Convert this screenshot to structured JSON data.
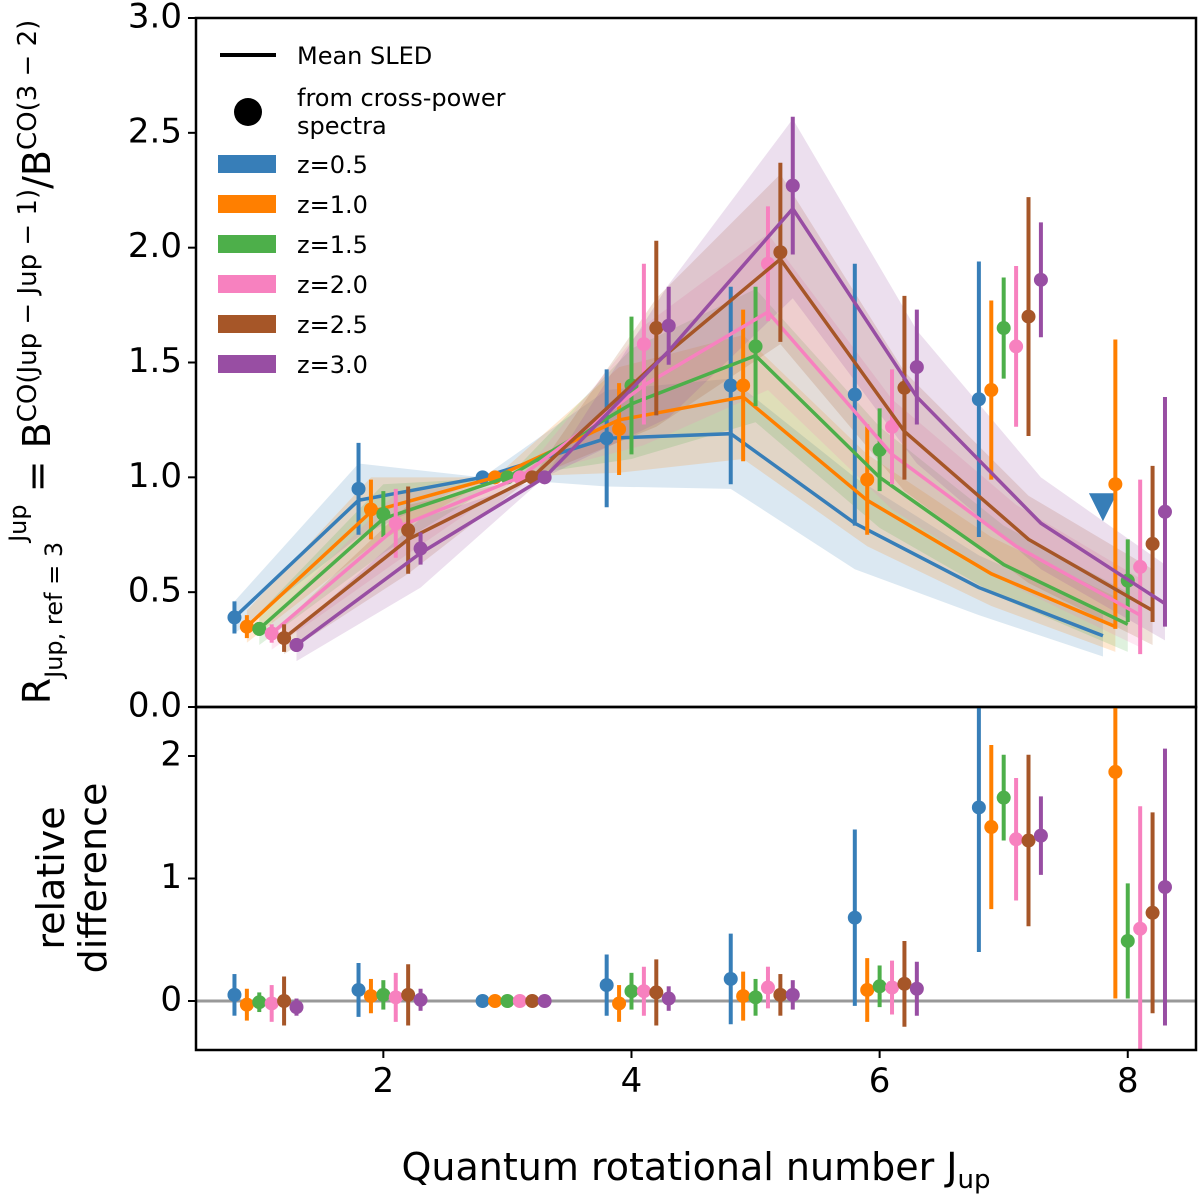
{
  "chart_data": [
    {
      "type": "line",
      "ylabel": [
        "R",
        "Jup, ref = 3",
        "Jup",
        " = B",
        "CO(Jup − Jup − 1)",
        "/B",
        "CO(3 − 2)"
      ],
      "xlim": [
        0.49,
        8.55
      ],
      "ylim": [
        0,
        3
      ],
      "yticks": [
        {
          "value": 0,
          "label": "0.0"
        },
        0.5,
        {
          "value": 1,
          "label": "1.0"
        },
        1.5,
        {
          "value": 2,
          "label": "2.0"
        },
        2.5,
        {
          "value": 3,
          "label": "3.0"
        }
      ],
      "legend": "upper left",
      "legend_items": [
        "Mean SLED",
        "from cross-power",
        " spectra"
      ],
      "series": [
        {
          "name": "z=0.5",
          "color": "#377eb8",
          "x": [
            0.8,
            1.8,
            2.8,
            3.8,
            4.8,
            5.8,
            6.8,
            7.8
          ],
          "values": [
            0.39,
            0.9,
            1.0,
            1.17,
            1.19,
            0.8,
            0.52,
            0.31
          ],
          "band_low": [
            0.32,
            0.74,
            1.0,
            0.96,
            0.95,
            0.6,
            0.4,
            0.22
          ],
          "band_high": [
            0.46,
            1.06,
            1.0,
            1.38,
            1.43,
            1.0,
            0.66,
            0.42
          ],
          "points": [
            0.39,
            0.95,
            1.0,
            1.17,
            1.4,
            1.36,
            1.34,
            null
          ],
          "errors": [
            0.07,
            0.2,
            0,
            0.3,
            0.43,
            0.57,
            0.6,
            null
          ],
          "upper_limits": [
            null,
            null,
            null,
            null,
            null,
            null,
            null,
            0.87
          ]
        },
        {
          "name": "z=1.0",
          "color": "#ff7f00",
          "x": [
            0.9,
            1.9,
            2.9,
            3.9,
            4.9,
            5.9,
            6.9,
            7.9
          ],
          "values": [
            0.35,
            0.85,
            1.0,
            1.25,
            1.35,
            0.9,
            0.58,
            0.35
          ],
          "band_low": [
            0.28,
            0.7,
            1.0,
            1.02,
            1.08,
            0.7,
            0.44,
            0.24
          ],
          "band_high": [
            0.42,
            1.0,
            1.0,
            1.48,
            1.62,
            1.1,
            0.74,
            0.48
          ],
          "points": [
            0.35,
            0.86,
            1.0,
            1.21,
            1.4,
            0.99,
            1.38,
            0.97
          ],
          "errors": [
            0.05,
            0.13,
            0,
            0.2,
            0.33,
            0.24,
            0.39,
            0.63
          ]
        },
        {
          "name": "z=1.5",
          "color": "#4daf4a",
          "x": [
            1.0,
            2.0,
            3.0,
            4.0,
            5.0,
            6.0,
            7.0,
            8.0
          ],
          "values": [
            0.34,
            0.82,
            1.0,
            1.32,
            1.53,
            1.0,
            0.62,
            0.36
          ],
          "band_low": [
            0.27,
            0.67,
            1.0,
            1.08,
            1.24,
            0.78,
            0.47,
            0.24
          ],
          "band_high": [
            0.41,
            0.97,
            1.0,
            1.56,
            1.82,
            1.22,
            0.79,
            0.5
          ],
          "points": [
            0.34,
            0.84,
            1.0,
            1.4,
            1.57,
            1.12,
            1.65,
            0.55
          ],
          "errors": [
            0.03,
            0.1,
            0,
            0.3,
            0.26,
            0.18,
            0.22,
            0.18
          ]
        },
        {
          "name": "z=2.0",
          "color": "#f781bf",
          "x": [
            1.1,
            2.1,
            3.1,
            4.1,
            5.1,
            6.1,
            7.1,
            8.1
          ],
          "values": [
            0.32,
            0.78,
            1.0,
            1.4,
            1.72,
            1.1,
            0.7,
            0.4
          ],
          "band_low": [
            0.25,
            0.63,
            1.0,
            1.14,
            1.38,
            0.86,
            0.52,
            0.26
          ],
          "band_high": [
            0.39,
            0.93,
            1.0,
            1.66,
            2.06,
            1.34,
            0.88,
            0.56
          ],
          "points": [
            0.32,
            0.8,
            1.0,
            1.58,
            1.93,
            1.22,
            1.57,
            0.61
          ],
          "errors": [
            0.04,
            0.15,
            0,
            0.35,
            0.25,
            0.25,
            0.35,
            0.38
          ]
        },
        {
          "name": "z=2.5",
          "color": "#a65628",
          "x": [
            1.2,
            2.2,
            3.2,
            4.2,
            5.2,
            6.2,
            7.2,
            8.2
          ],
          "values": [
            0.3,
            0.73,
            1.0,
            1.5,
            1.95,
            1.2,
            0.73,
            0.42
          ],
          "band_low": [
            0.23,
            0.58,
            1.0,
            1.22,
            1.58,
            0.94,
            0.54,
            0.27
          ],
          "band_high": [
            0.37,
            0.88,
            1.0,
            1.78,
            2.32,
            1.46,
            0.92,
            0.6
          ],
          "points": [
            0.3,
            0.77,
            1.0,
            1.65,
            1.98,
            1.39,
            1.7,
            0.71
          ],
          "errors": [
            0.06,
            0.19,
            0,
            0.38,
            0.39,
            0.4,
            0.52,
            0.34
          ]
        },
        {
          "name": "z=3.0",
          "color": "#984ea3",
          "x": [
            1.3,
            2.3,
            3.3,
            4.3,
            5.3,
            6.3,
            7.3,
            8.3
          ],
          "values": [
            0.27,
            0.67,
            1.0,
            1.55,
            2.17,
            1.35,
            0.8,
            0.45
          ],
          "band_low": [
            0.2,
            0.52,
            1.0,
            1.26,
            1.78,
            1.06,
            0.6,
            0.29
          ],
          "band_high": [
            0.34,
            0.82,
            1.0,
            1.84,
            2.56,
            1.64,
            1.0,
            0.62
          ],
          "points": [
            0.27,
            0.69,
            1.0,
            1.66,
            2.27,
            1.48,
            1.86,
            0.85
          ],
          "errors": [
            0.03,
            0.07,
            0,
            0.17,
            0.3,
            0.25,
            0.25,
            0.5
          ]
        }
      ]
    },
    {
      "type": "scatter",
      "ylabel": [
        "relative",
        "difference"
      ],
      "xlabel": [
        "Quantum rotational number J",
        "up"
      ],
      "xlim": [
        0.49,
        8.55
      ],
      "ylim": [
        -0.4,
        2.4
      ],
      "xticks": [
        2,
        4,
        6,
        8
      ],
      "yticks": [
        0,
        1,
        2
      ],
      "hline": 0,
      "series": [
        {
          "name": "z=0.5",
          "color": "#377eb8",
          "x": [
            0.8,
            1.8,
            2.8,
            3.8,
            4.8,
            5.8,
            6.8,
            7.8
          ],
          "values": [
            0.05,
            0.09,
            0,
            0.13,
            0.18,
            0.68,
            1.58,
            null
          ],
          "errors": [
            0.17,
            0.22,
            0,
            0.25,
            0.37,
            0.72,
            1.18,
            null
          ]
        },
        {
          "name": "z=1.0",
          "color": "#ff7f00",
          "x": [
            0.9,
            1.9,
            2.9,
            3.9,
            4.9,
            5.9,
            6.9,
            7.9
          ],
          "values": [
            -0.03,
            0.04,
            0,
            -0.02,
            0.04,
            0.09,
            1.42,
            1.87
          ],
          "errors": [
            0.13,
            0.14,
            0,
            0.15,
            0.2,
            0.26,
            0.67,
            1.85
          ]
        },
        {
          "name": "z=1.5",
          "color": "#4daf4a",
          "x": [
            1.0,
            2.0,
            3.0,
            4.0,
            5.0,
            6.0,
            7.0,
            8.0
          ],
          "values": [
            -0.01,
            0.05,
            0,
            0.08,
            0.03,
            0.12,
            1.66,
            0.49
          ],
          "errors": [
            0.08,
            0.12,
            0,
            0.15,
            0.15,
            0.17,
            0.35,
            0.47
          ]
        },
        {
          "name": "z=2.0",
          "color": "#f781bf",
          "x": [
            1.1,
            2.1,
            3.1,
            4.1,
            5.1,
            6.1,
            7.1,
            8.1
          ],
          "values": [
            -0.02,
            0.03,
            0,
            0.08,
            0.11,
            0.11,
            1.32,
            0.59
          ],
          "errors": [
            0.15,
            0.2,
            0,
            0.2,
            0.17,
            0.22,
            0.5,
            1.0
          ]
        },
        {
          "name": "z=2.5",
          "color": "#a65628",
          "x": [
            1.2,
            2.2,
            3.2,
            4.2,
            5.2,
            6.2,
            7.2,
            8.2
          ],
          "values": [
            0.0,
            0.05,
            0,
            0.07,
            0.05,
            0.14,
            1.31,
            0.72
          ],
          "errors": [
            0.2,
            0.25,
            0,
            0.27,
            0.17,
            0.35,
            0.7,
            0.82
          ]
        },
        {
          "name": "z=3.0",
          "color": "#984ea3",
          "x": [
            1.3,
            2.3,
            3.3,
            4.3,
            5.3,
            6.3,
            7.3,
            8.3
          ],
          "values": [
            -0.05,
            0.01,
            0,
            0.02,
            0.05,
            0.1,
            1.35,
            0.93
          ],
          "errors": [
            0.07,
            0.09,
            0,
            0.1,
            0.12,
            0.22,
            0.32,
            1.13
          ]
        }
      ]
    }
  ]
}
